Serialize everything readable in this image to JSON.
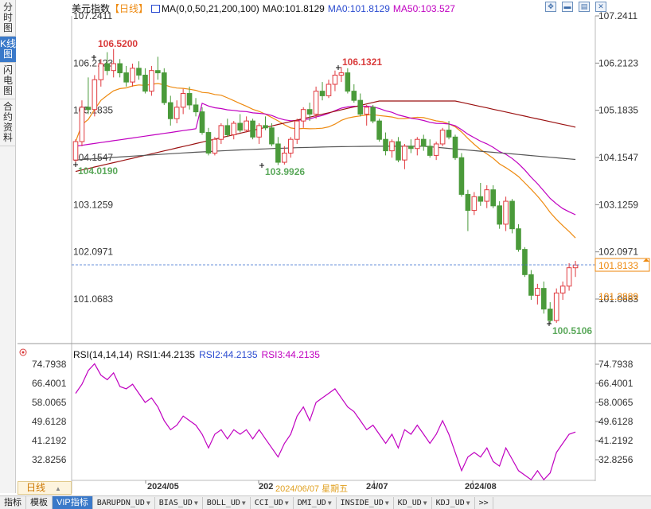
{
  "left_tabs": [
    {
      "label": "分时图",
      "active": false
    },
    {
      "label": "K线图",
      "active": true
    },
    {
      "label": "闪电图",
      "active": false
    },
    {
      "label": "合约资料",
      "active": false
    }
  ],
  "header": {
    "name": "美元指数",
    "period": "【日线】",
    "ma_params": "MA(0,0,50,21,200,100)",
    "ma0_a": "MA0:101.8129",
    "ma0_b": "MA0:101.8129",
    "ma50": "MA50:103.527"
  },
  "toolbar_icons": [
    "move-icon",
    "collapse-icon",
    "restore-icon",
    "close-icon"
  ],
  "price_axis": {
    "ticks": [
      "107.2411",
      "106.2123",
      "105.1835",
      "104.1547",
      "103.1259",
      "102.0971",
      "101.0683"
    ],
    "last_price": "101.8133",
    "ma_value": "101.2889"
  },
  "annotations": {
    "high1": "106.5200",
    "high2": "106.1321",
    "low1": "104.0190",
    "low2": "103.9926",
    "low3": "100.5106"
  },
  "rsi_header": {
    "params": "RSI(14,14,14)",
    "rsi1": "RSI1:44.2135",
    "rsi2": "RSI2:44.2135",
    "rsi3": "RSI3:44.2135"
  },
  "rsi_axis": {
    "ticks": [
      "74.7938",
      "66.4001",
      "58.0065",
      "49.6128",
      "41.2192",
      "32.8256"
    ]
  },
  "date_axis": {
    "labels": [
      "2024/05",
      "202",
      "24/07",
      "2024/08"
    ],
    "cursor_date": "2024/06/07 星期五"
  },
  "period_tab": "日线",
  "bottom_tabs": [
    {
      "label": "指标",
      "cn": true,
      "active": false,
      "caret": false
    },
    {
      "label": "模板",
      "cn": true,
      "active": false,
      "caret": false
    },
    {
      "label": "VIP指标",
      "cn": true,
      "active": true,
      "caret": false
    },
    {
      "label": "BARUPDN_UD",
      "cn": false,
      "active": false,
      "caret": true
    },
    {
      "label": "BIAS_UD",
      "cn": false,
      "active": false,
      "caret": true
    },
    {
      "label": "BOLL_UD",
      "cn": false,
      "active": false,
      "caret": true
    },
    {
      "label": "CCI_UD",
      "cn": false,
      "active": false,
      "caret": true
    },
    {
      "label": "DMI_UD",
      "cn": false,
      "active": false,
      "caret": true
    },
    {
      "label": "INSIDE_UD",
      "cn": false,
      "active": false,
      "caret": true
    },
    {
      "label": "KD_UD",
      "cn": false,
      "active": false,
      "caret": true
    },
    {
      "label": "KDJ_UD",
      "cn": false,
      "active": false,
      "caret": true
    },
    {
      "label": ">>",
      "cn": false,
      "active": false,
      "caret": false
    }
  ],
  "colors": {
    "up": "#e0393e",
    "down": "#4a9a3a",
    "ma_fast": "#ee8a10",
    "ma_50": "#c000c0",
    "ma_slow": "#9a1010",
    "ma_200": "#555555",
    "rsi": "#c000c0",
    "label_orange": "#ee8a10",
    "label_blue": "#2a4bd0",
    "label_red": "#d93b3b",
    "label_green": "#5aa85a"
  },
  "chart_data": {
    "type": "candlestick",
    "title": "美元指数 日线",
    "x": [
      "2024/04",
      "2024/08"
    ],
    "ylim": [
      100.3,
      107.4
    ],
    "candles": [
      [
        104.1,
        104.55,
        104.02,
        104.5
      ],
      [
        104.5,
        105.4,
        104.4,
        105.25
      ],
      [
        105.25,
        105.9,
        105.1,
        105.2
      ],
      [
        105.2,
        105.95,
        105.05,
        105.85
      ],
      [
        105.85,
        106.3,
        105.7,
        106.2
      ],
      [
        106.2,
        106.45,
        105.95,
        106.05
      ],
      [
        106.05,
        106.52,
        105.9,
        106.2
      ],
      [
        106.2,
        106.3,
        105.9,
        106.0
      ],
      [
        106.0,
        106.15,
        105.7,
        105.8
      ],
      [
        105.8,
        106.2,
        105.7,
        106.1
      ],
      [
        106.1,
        106.25,
        105.85,
        105.95
      ],
      [
        105.95,
        106.1,
        105.55,
        105.6
      ],
      [
        105.6,
        106.15,
        105.5,
        106.05
      ],
      [
        106.05,
        106.35,
        105.85,
        106.0
      ],
      [
        106.0,
        106.1,
        105.3,
        105.35
      ],
      [
        105.35,
        105.5,
        104.85,
        105.0
      ],
      [
        105.0,
        105.4,
        104.9,
        105.25
      ],
      [
        105.25,
        105.65,
        105.1,
        105.55
      ],
      [
        105.55,
        105.7,
        105.2,
        105.3
      ],
      [
        105.3,
        105.45,
        105.05,
        105.15
      ],
      [
        105.15,
        105.25,
        104.65,
        104.7
      ],
      [
        104.7,
        104.8,
        104.2,
        104.25
      ],
      [
        104.25,
        104.6,
        104.2,
        104.55
      ],
      [
        104.55,
        104.9,
        104.45,
        104.85
      ],
      [
        104.85,
        105.0,
        104.6,
        104.65
      ],
      [
        104.65,
        104.95,
        104.55,
        104.9
      ],
      [
        104.9,
        105.1,
        104.7,
        104.75
      ],
      [
        104.75,
        105.05,
        104.7,
        104.95
      ],
      [
        104.95,
        105.0,
        104.55,
        104.6
      ],
      [
        104.6,
        104.9,
        104.45,
        104.85
      ],
      [
        104.85,
        105.05,
        104.75,
        104.8
      ],
      [
        104.8,
        104.9,
        104.4,
        104.45
      ],
      [
        104.45,
        104.6,
        103.99,
        104.05
      ],
      [
        104.05,
        104.4,
        104.0,
        104.25
      ],
      [
        104.25,
        104.6,
        104.15,
        104.55
      ],
      [
        104.55,
        105.0,
        104.45,
        104.95
      ],
      [
        104.95,
        105.25,
        104.8,
        105.2
      ],
      [
        105.2,
        105.35,
        104.95,
        105.1
      ],
      [
        105.1,
        105.7,
        105.0,
        105.6
      ],
      [
        105.6,
        105.8,
        105.4,
        105.5
      ],
      [
        105.5,
        105.85,
        105.45,
        105.75
      ],
      [
        105.75,
        106.05,
        105.6,
        105.95
      ],
      [
        105.95,
        106.13,
        105.8,
        106.0
      ],
      [
        106.0,
        106.1,
        105.55,
        105.6
      ],
      [
        105.6,
        105.75,
        105.35,
        105.4
      ],
      [
        105.4,
        105.55,
        105.05,
        105.1
      ],
      [
        105.1,
        105.3,
        104.85,
        105.25
      ],
      [
        105.25,
        105.3,
        104.9,
        104.95
      ],
      [
        104.95,
        105.0,
        104.5,
        104.55
      ],
      [
        104.55,
        104.7,
        104.2,
        104.3
      ],
      [
        104.3,
        104.55,
        104.15,
        104.5
      ],
      [
        104.5,
        104.6,
        104.05,
        104.1
      ],
      [
        104.1,
        104.45,
        103.9,
        104.4
      ],
      [
        104.4,
        104.55,
        104.25,
        104.35
      ],
      [
        104.35,
        104.6,
        104.2,
        104.55
      ],
      [
        104.55,
        104.65,
        104.3,
        104.4
      ],
      [
        104.4,
        104.55,
        104.15,
        104.2
      ],
      [
        104.2,
        104.5,
        104.1,
        104.45
      ],
      [
        104.45,
        104.8,
        104.4,
        104.75
      ],
      [
        104.75,
        104.95,
        104.55,
        104.6
      ],
      [
        104.6,
        104.65,
        104.1,
        104.15
      ],
      [
        104.15,
        104.25,
        103.3,
        103.35
      ],
      [
        103.35,
        103.45,
        102.55,
        103.0
      ],
      [
        103.0,
        103.4,
        102.9,
        103.3
      ],
      [
        103.3,
        103.6,
        103.1,
        103.2
      ],
      [
        103.2,
        103.55,
        103.05,
        103.45
      ],
      [
        103.45,
        103.55,
        103.05,
        103.1
      ],
      [
        103.1,
        103.2,
        102.6,
        102.7
      ],
      [
        102.7,
        103.3,
        102.55,
        103.2
      ],
      [
        103.2,
        103.25,
        102.5,
        102.6
      ],
      [
        102.6,
        102.7,
        102.1,
        102.15
      ],
      [
        102.15,
        102.2,
        101.55,
        101.6
      ],
      [
        101.6,
        101.7,
        101.05,
        101.15
      ],
      [
        101.15,
        101.4,
        100.95,
        101.3
      ],
      [
        101.3,
        101.45,
        100.75,
        100.85
      ],
      [
        100.85,
        101.0,
        100.52,
        100.6
      ],
      [
        100.6,
        101.3,
        100.55,
        101.2
      ],
      [
        101.2,
        101.45,
        101.05,
        101.35
      ],
      [
        101.35,
        101.85,
        101.25,
        101.75
      ],
      [
        101.75,
        101.9,
        101.55,
        101.81
      ]
    ],
    "rsi": [
      62,
      66,
      72,
      75,
      70,
      68,
      71,
      65,
      64,
      66,
      62,
      58,
      60,
      56,
      50,
      46,
      48,
      52,
      50,
      48,
      44,
      38,
      44,
      46,
      42,
      46,
      44,
      46,
      42,
      46,
      42,
      38,
      34,
      40,
      44,
      52,
      56,
      50,
      58,
      60,
      62,
      64,
      60,
      56,
      54,
      50,
      46,
      48,
      44,
      40,
      44,
      38,
      46,
      44,
      48,
      44,
      40,
      44,
      50,
      44,
      36,
      28,
      34,
      36,
      34,
      38,
      32,
      30,
      38,
      33,
      28,
      26,
      24,
      28,
      24,
      27,
      36,
      40,
      44,
      45
    ]
  }
}
